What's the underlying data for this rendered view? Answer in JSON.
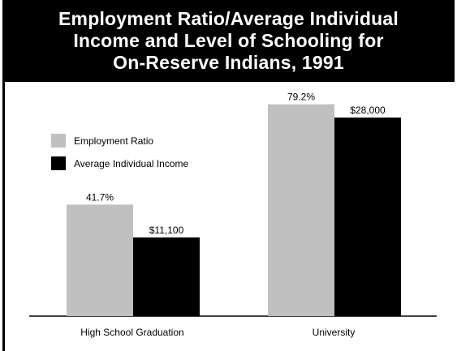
{
  "chart_data": {
    "type": "bar",
    "title": "Employment Ratio/Average Individual\nIncome and Level of Schooling for\nOn-Reserve Indians, 1991",
    "categories": [
      "High School Graduation",
      "University"
    ],
    "series": [
      {
        "name": "Employment Ratio",
        "color": "#c0c0c0",
        "values": [
          41.7,
          79.2
        ],
        "labels": [
          "41.7%",
          "79.2%"
        ]
      },
      {
        "name": "Average Individual Income",
        "color": "#000000",
        "values": [
          11100,
          28000
        ],
        "labels": [
          "$11,100",
          "$28,000"
        ]
      }
    ],
    "legend": "top-left",
    "grid": false
  }
}
